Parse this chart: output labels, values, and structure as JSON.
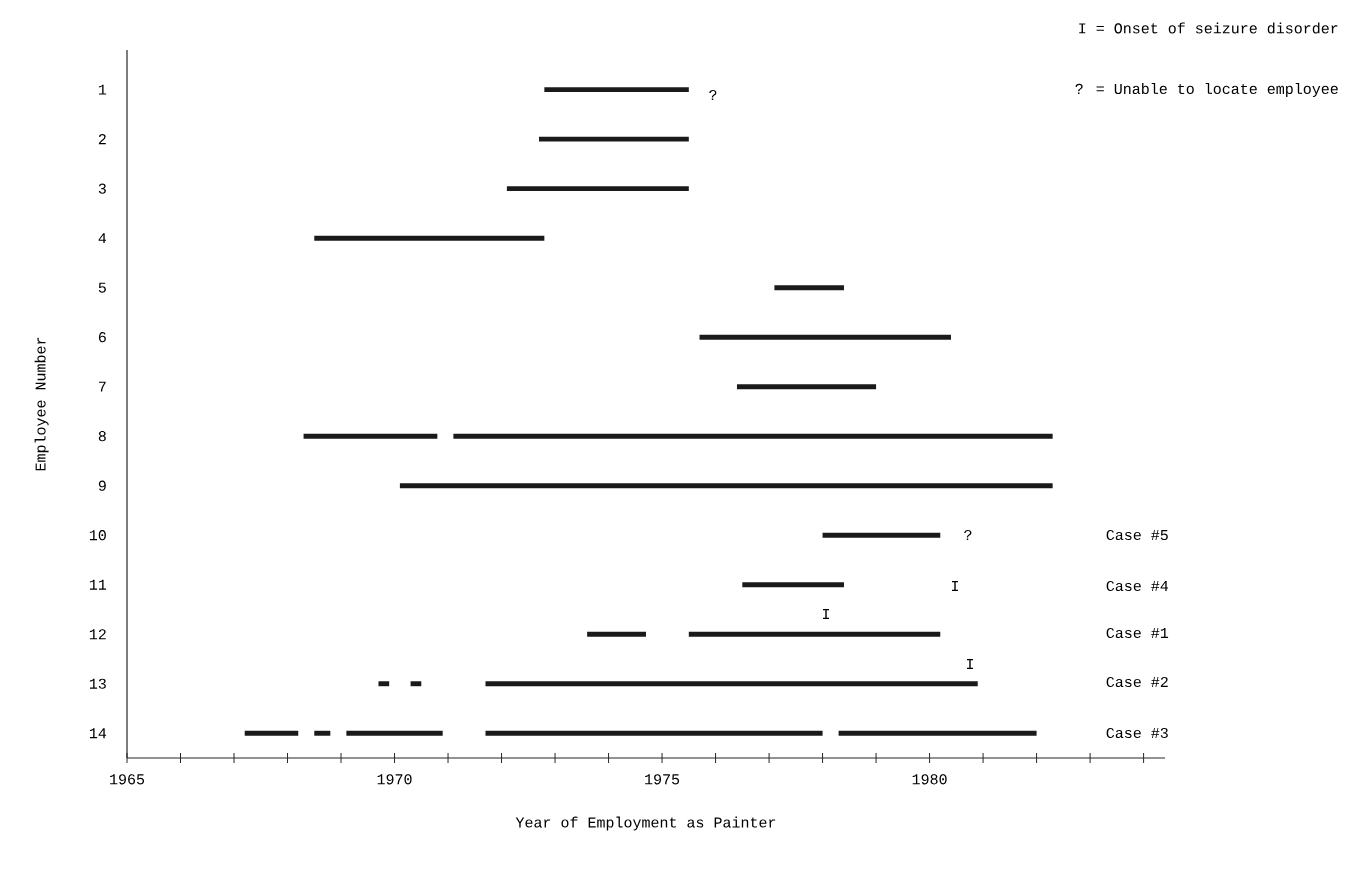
{
  "chart_data": {
    "type": "bar",
    "orientation": "horizontal",
    "xlabel": "Year of Employment as Painter",
    "ylabel": "Employee Number",
    "categories": [
      "1",
      "2",
      "3",
      "4",
      "5",
      "6",
      "7",
      "8",
      "9",
      "10",
      "11",
      "12",
      "13",
      "14"
    ],
    "series": [
      {
        "color": "#1a1a1a",
        "base": [
          1972.8,
          1972.7,
          1972.1,
          1968.5,
          1977.1,
          1975.7,
          1976.4,
          1968.3,
          1970.1,
          1978.0,
          1976.5,
          1973.6,
          1969.7,
          1967.2
        ],
        "values": [
          2.7,
          2.8,
          3.4,
          4.3,
          1.3,
          4.7,
          2.6,
          2.5,
          12.2,
          2.2,
          1.9,
          1.1,
          0.2,
          1.0
        ]
      },
      {
        "color": "#1a1a1a",
        "base": [
          null,
          null,
          null,
          null,
          null,
          null,
          null,
          1971.1,
          null,
          null,
          null,
          1975.5,
          1970.3,
          1968.5
        ],
        "values": [
          null,
          null,
          null,
          null,
          null,
          null,
          null,
          11.2,
          null,
          null,
          null,
          4.7,
          0.2,
          0.3
        ]
      },
      {
        "color": "#1a1a1a",
        "base": [
          null,
          null,
          null,
          null,
          null,
          null,
          null,
          null,
          null,
          null,
          null,
          null,
          1971.7,
          1969.1
        ],
        "values": [
          null,
          null,
          null,
          null,
          null,
          null,
          null,
          null,
          null,
          null,
          null,
          null,
          9.2,
          1.8
        ]
      },
      {
        "color": "#1a1a1a",
        "base": [
          null,
          null,
          null,
          null,
          null,
          null,
          null,
          null,
          null,
          null,
          null,
          null,
          null,
          1971.7
        ],
        "values": [
          null,
          null,
          null,
          null,
          null,
          null,
          null,
          null,
          null,
          null,
          null,
          null,
          null,
          6.3
        ]
      },
      {
        "color": "#1a1a1a",
        "base": [
          null,
          null,
          null,
          null,
          null,
          null,
          null,
          null,
          null,
          null,
          null,
          null,
          null,
          1978.3
        ],
        "values": [
          null,
          null,
          null,
          null,
          null,
          null,
          null,
          null,
          null,
          null,
          null,
          null,
          null,
          3.7
        ]
      }
    ],
    "xlim": [
      1965,
      1984.4
    ],
    "xticks": [
      1965,
      {
        "value": 1966,
        "label": null
      },
      {
        "value": 1967,
        "label": null
      },
      {
        "value": 1968,
        "label": null
      },
      {
        "value": 1969,
        "label": null
      },
      1970,
      {
        "value": 1971,
        "label": null
      },
      {
        "value": 1972,
        "label": null
      },
      {
        "value": 1973,
        "label": null
      },
      {
        "value": 1974,
        "label": null
      },
      1975,
      {
        "value": 1976,
        "label": null
      },
      {
        "value": 1977,
        "label": null
      },
      {
        "value": 1978,
        "label": null
      },
      {
        "value": 1979,
        "label": null
      },
      1980,
      {
        "value": 1981,
        "label": null
      },
      {
        "value": 1982,
        "label": null
      },
      {
        "value": 1983,
        "label": null
      },
      {
        "value": 1984,
        "label": null
      }
    ],
    "annotations": [
      "I = Onset of seizure disorder",
      "? = Unable to locate employee",
      "?",
      "?",
      "I",
      "I",
      "I",
      "Case #5",
      "Case #4",
      "Case #1",
      "Case #2",
      "Case #3"
    ]
  }
}
